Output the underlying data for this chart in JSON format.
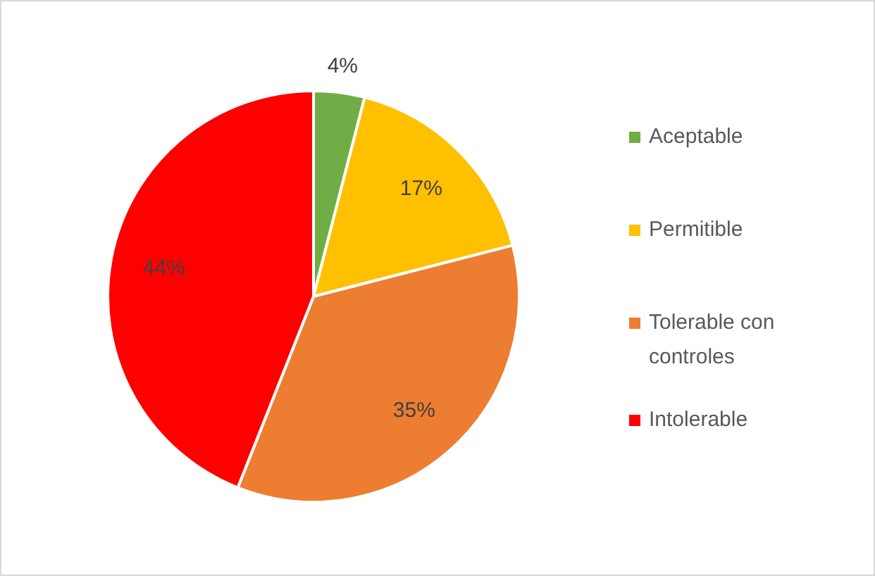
{
  "chart_data": {
    "type": "pie",
    "categories": [
      "Aceptable",
      "Permitible",
      "Tolerable con controles",
      "Intolerable"
    ],
    "values": [
      4,
      17,
      35,
      44
    ],
    "colors": [
      "#70ad47",
      "#ffc000",
      "#ed7d31",
      "#ff0000"
    ],
    "value_labels": [
      "4%",
      "17%",
      "35%",
      "44%"
    ],
    "legend": "right"
  }
}
